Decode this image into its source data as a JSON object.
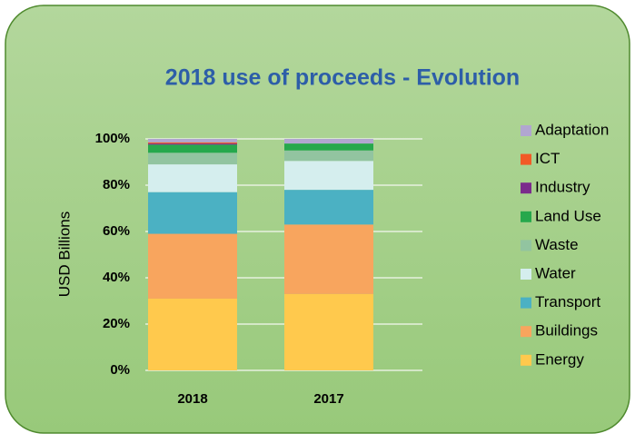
{
  "chart_data": {
    "type": "stacked_bar",
    "title": "2018 use of proceeds - Evolution",
    "y_label": "USD Billions",
    "categories": [
      "2018",
      "2017"
    ],
    "series": [
      {
        "name": "Energy",
        "color": "#ffc94d",
        "values": [
          31,
          33
        ]
      },
      {
        "name": "Buildings",
        "color": "#f8a55e",
        "values": [
          28,
          30
        ]
      },
      {
        "name": "Transport",
        "color": "#4bb1c3",
        "values": [
          18,
          15
        ]
      },
      {
        "name": "Water",
        "color": "#d5eeee",
        "values": [
          12,
          12.5
        ]
      },
      {
        "name": "Waste",
        "color": "#92c4a0",
        "values": [
          5,
          4.5
        ]
      },
      {
        "name": "Land Use",
        "color": "#26a84c",
        "values": [
          3.5,
          3
        ]
      },
      {
        "name": "Industry",
        "color": "#7b2c8c",
        "values": [
          0.5,
          0
        ]
      },
      {
        "name": "ICT",
        "color": "#f25a26",
        "values": [
          0.5,
          0
        ]
      },
      {
        "name": "Adaptation",
        "color": "#b1a6d0",
        "values": [
          1.5,
          2
        ]
      }
    ],
    "ylim": [
      0,
      100
    ],
    "yticks": [
      {
        "value": 0,
        "label": "0%"
      },
      {
        "value": 20,
        "label": "20%"
      },
      {
        "value": 40,
        "label": "40%"
      },
      {
        "value": 60,
        "label": "60%"
      },
      {
        "value": 80,
        "label": "80%"
      },
      {
        "value": 100,
        "label": "100%"
      }
    ],
    "grid": true,
    "legend": "right"
  }
}
